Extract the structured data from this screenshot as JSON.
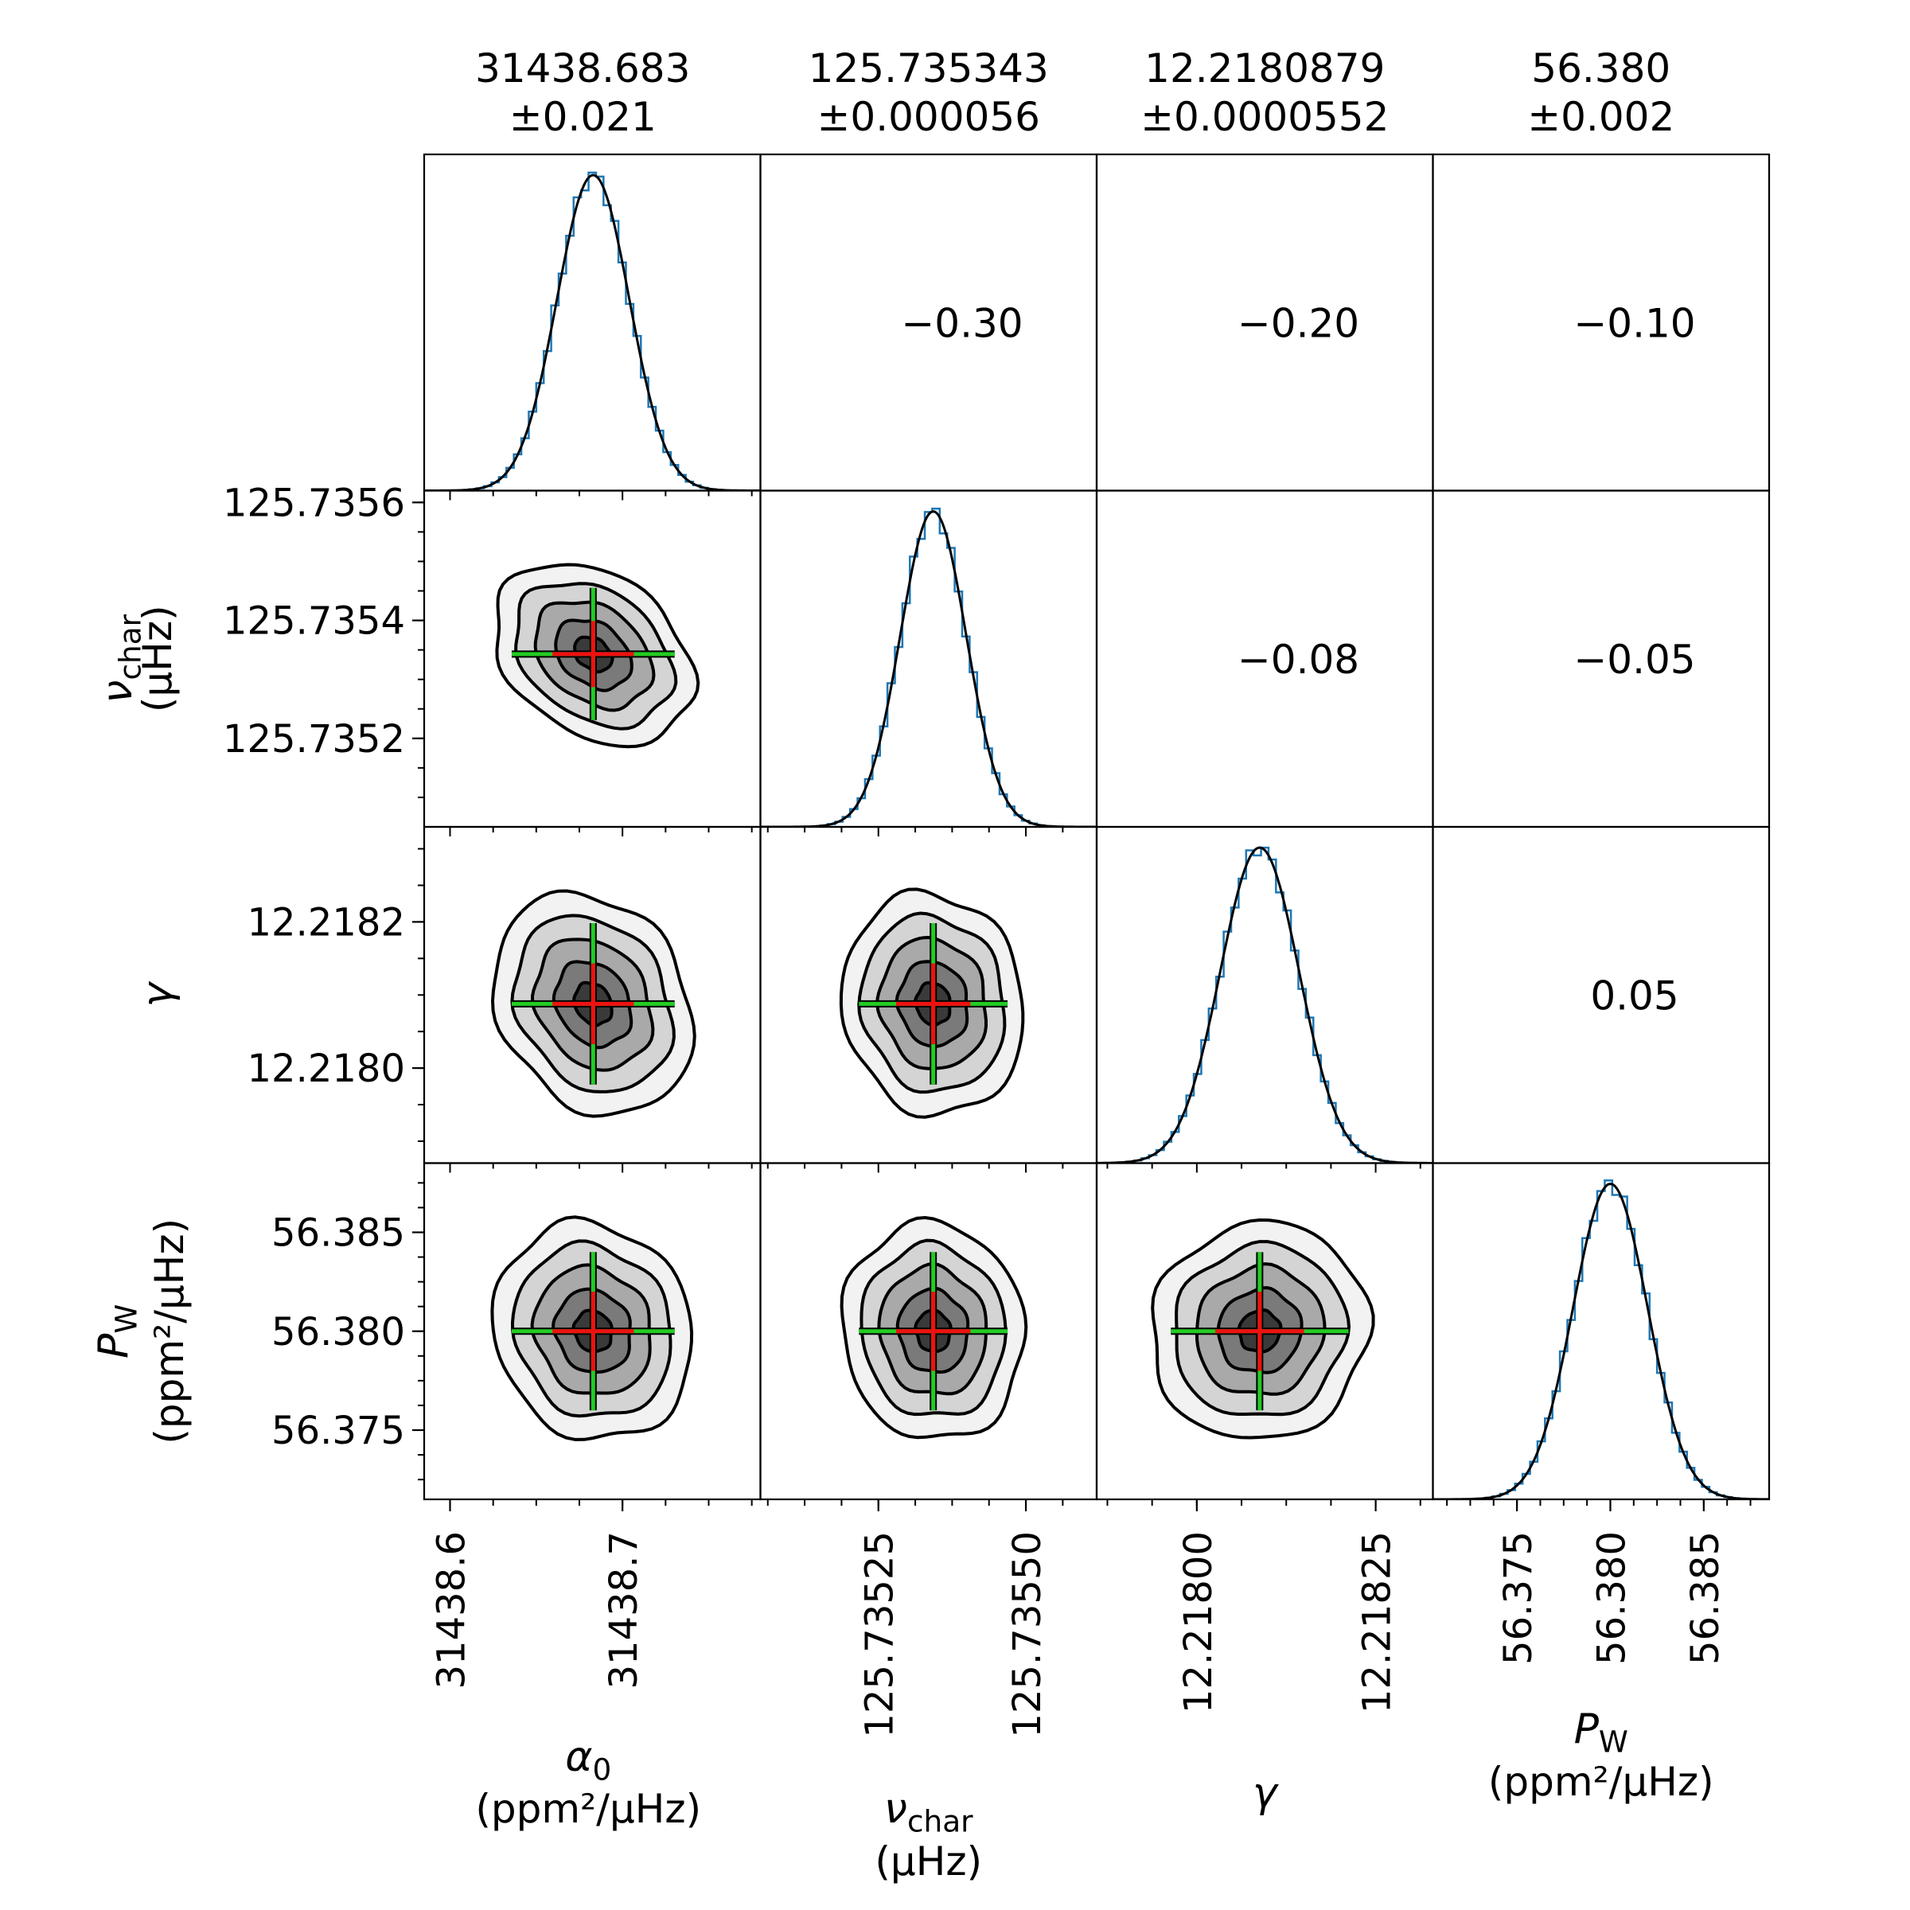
{
  "chart_data": {
    "type": "corner",
    "params": [
      {
        "name": "alpha0",
        "symbol": "α",
        "subscript": "0",
        "unit": "(ppm²/µHz)",
        "median": 31438.683,
        "title_value": "31438.683",
        "title_err": "±0.021",
        "xlim": [
          31438.585,
          31438.78
        ],
        "xticks": [
          31438.6,
          31438.7
        ],
        "xtick_labels": [
          "31438.6",
          "31438.7"
        ]
      },
      {
        "name": "nu_char",
        "symbol": "ν",
        "subscript": "char",
        "unit": "(µHz)",
        "median": 125.735343,
        "title_value": "125.735343",
        "title_err": "±0.000056",
        "xlim": [
          125.73505,
          125.73562
        ],
        "xticks": [
          125.73525,
          125.7355
        ],
        "xtick_labels": [
          "125.73525",
          "125.73550"
        ],
        "ylim": [
          125.73505,
          125.73562
        ],
        "yticks": [
          125.7352,
          125.7354,
          125.7356
        ],
        "ytick_labels": [
          "125.7352",
          "125.7354",
          "125.7356"
        ]
      },
      {
        "name": "gamma",
        "symbol": "γ",
        "subscript": "",
        "unit": "",
        "median": 12.2180879,
        "title_value": "12.2180879",
        "title_err": "±0.0000552",
        "xlim": [
          12.21786,
          12.21833
        ],
        "xticks": [
          12.218,
          12.21825
        ],
        "xtick_labels": [
          "12.21800",
          "12.21825"
        ],
        "ylim": [
          12.21787,
          12.21833
        ],
        "yticks": [
          12.218,
          12.2182
        ],
        "ytick_labels": [
          "12.2180",
          "12.2182"
        ]
      },
      {
        "name": "P_W",
        "symbol": "P",
        "subscript": "W",
        "unit": "(ppm²/µHz)",
        "median": 56.38,
        "title_value": "56.380",
        "title_err": "±0.002",
        "xlim": [
          56.3705,
          56.3885
        ],
        "xticks": [
          56.375,
          56.38,
          56.385
        ],
        "xtick_labels": [
          "56.375",
          "56.380",
          "56.385"
        ],
        "ylim": [
          56.3715,
          56.3885
        ],
        "yticks": [
          56.375,
          56.38,
          56.385
        ],
        "ytick_labels": [
          "56.375",
          "56.380",
          "56.385"
        ]
      }
    ],
    "correlations": [
      {
        "row": 0,
        "col": 1,
        "value": "−0.30"
      },
      {
        "row": 0,
        "col": 2,
        "value": "−0.20"
      },
      {
        "row": 0,
        "col": 3,
        "value": "−0.10"
      },
      {
        "row": 1,
        "col": 2,
        "value": "−0.08"
      },
      {
        "row": 1,
        "col": 3,
        "value": "−0.05"
      },
      {
        "row": 2,
        "col": 3,
        "value": "0.05"
      }
    ],
    "sigmas": [
      0.021,
      5.6e-05,
      5.52e-05,
      0.002
    ],
    "contour_levels": 5,
    "contour_fills": [
      "#f2f2f2",
      "#d4d4d4",
      "#a9a9a9",
      "#7a7a7a",
      "#3a3a3a"
    ],
    "colors": {
      "histogram": "#1f77b4",
      "kde": "#000000",
      "crosshair_outer": "#22cc22",
      "crosshair_inner": "#ee1111",
      "contour_line": "#000000"
    }
  }
}
